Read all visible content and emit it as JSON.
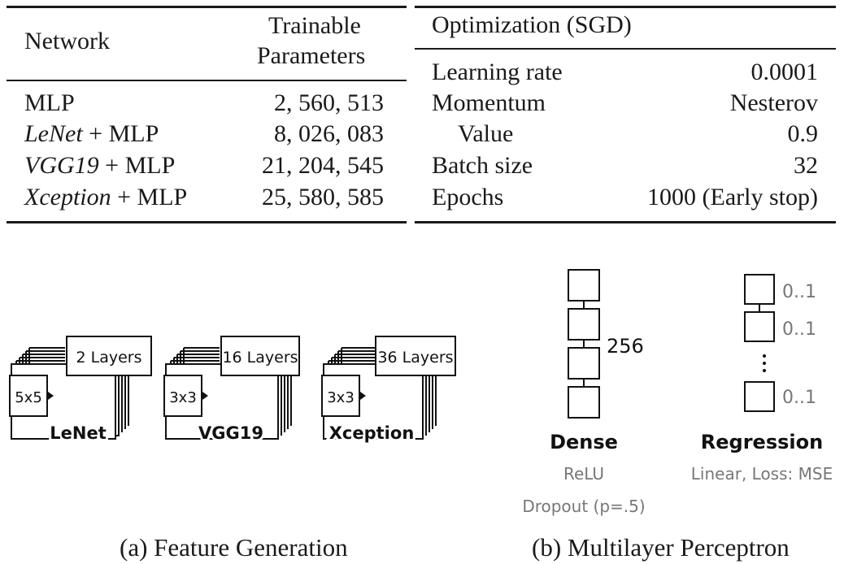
{
  "table_left": {
    "header": {
      "network": "Network",
      "params_line1": "Trainable",
      "params_line2": "Parameters"
    },
    "rows": [
      {
        "name_it": "",
        "name_rest": "MLP",
        "params": "2, 560, 513"
      },
      {
        "name_it": "LeNet",
        "name_rest": " + MLP",
        "params": "8, 026, 083"
      },
      {
        "name_it": "VGG19",
        "name_rest": " + MLP",
        "params": "21, 204, 545"
      },
      {
        "name_it": "Xception",
        "name_rest": " + MLP",
        "params": "25, 580, 585"
      }
    ]
  },
  "table_right": {
    "header": "Optimization (SGD)",
    "rows": [
      {
        "label": "Learning rate",
        "value": "0.0001"
      },
      {
        "label": "Momentum",
        "value": "Nesterov"
      },
      {
        "label": "Value",
        "value": "0.9"
      },
      {
        "label": "Batch size",
        "value": "32"
      },
      {
        "label": "Epochs",
        "value": "1000 (Early stop)"
      }
    ]
  },
  "feature_generation": {
    "blocks": [
      {
        "kernel": "5x5",
        "layers": "2 Layers",
        "name": "LeNet"
      },
      {
        "kernel": "3x3",
        "layers": "16 Layers",
        "name": "VGG19"
      },
      {
        "kernel": "3x3",
        "layers": "36 Layers",
        "name": "Xception"
      }
    ],
    "caption": "(a) Feature Generation"
  },
  "mlp": {
    "dense": {
      "units": "256",
      "title": "Dense",
      "activation": "ReLU",
      "dropout": "Dropout (p=.5)"
    },
    "regression": {
      "output_labels": [
        "0..1",
        "0..1",
        "0..1"
      ],
      "title": "Regression",
      "detail": "Linear, Loss: MSE"
    },
    "caption": "(b) Multilayer Perceptron"
  }
}
